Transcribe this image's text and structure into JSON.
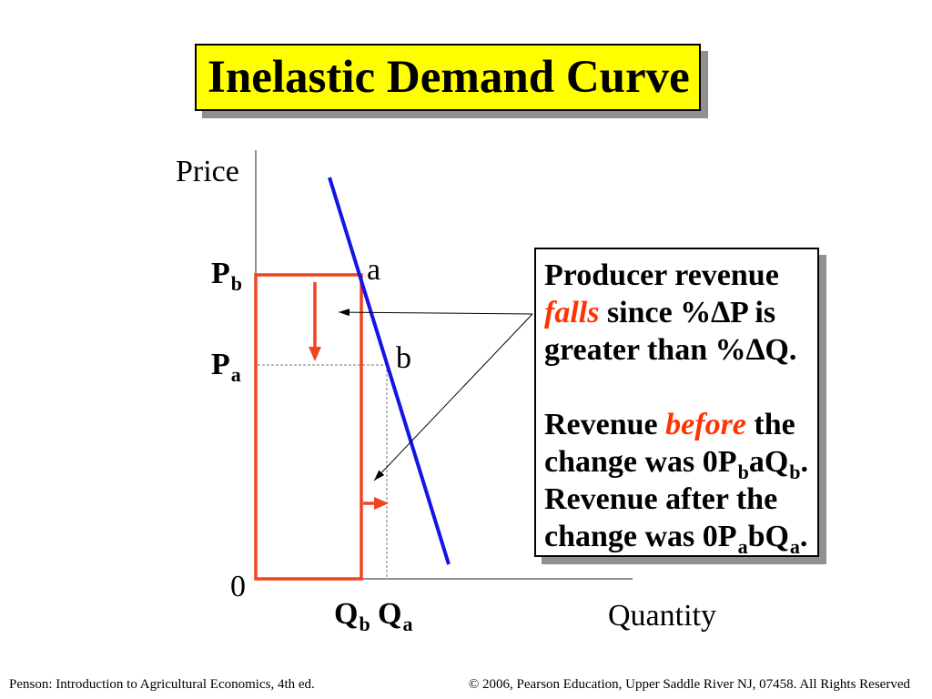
{
  "title": "Inelastic Demand Curve",
  "graph": {
    "y_axis_label": "Price",
    "x_axis_label": "Quantity",
    "origin_label": "0",
    "price_before": {
      "symbol": "P",
      "subscript": "b"
    },
    "price_after": {
      "symbol": "P",
      "subscript": "a"
    },
    "quantity_before": {
      "symbol": "Q",
      "subscript": "b"
    },
    "quantity_after": {
      "symbol": "Q",
      "subscript": "a"
    },
    "point_before": "a",
    "point_after": "b"
  },
  "explanation": {
    "line1": "Producer revenue",
    "line2_emphasis": "falls",
    "line2_rest": "since %∆P is",
    "line3": "greater than %∆Q.",
    "line5_start": "Revenue",
    "line5_emphasis": "before",
    "line5_end": "the",
    "before_total": {
      "prefix": "change was 0P",
      "sub1": "b",
      "mid": "aQ",
      "sub2": "b",
      "suffix": "."
    },
    "line7": "Revenue after the",
    "after_total": {
      "prefix": "change was 0P",
      "sub1": "a",
      "mid": "bQ",
      "sub2": "a",
      "suffix": "."
    }
  },
  "footer": {
    "left": "Penson: Introduction to Agricultural Economics, 4th ed.",
    "right": "© 2006, Pearson Education, Upper Saddle River NJ, 07458. All Rights Reserved"
  },
  "colors": {
    "title_background": "#FFFF00",
    "emphasis_text": "#FF3300",
    "revenue_rectangle": "#EE4422",
    "price_change_arrow": "#EE4422",
    "demand_curve": "#1414E6"
  }
}
